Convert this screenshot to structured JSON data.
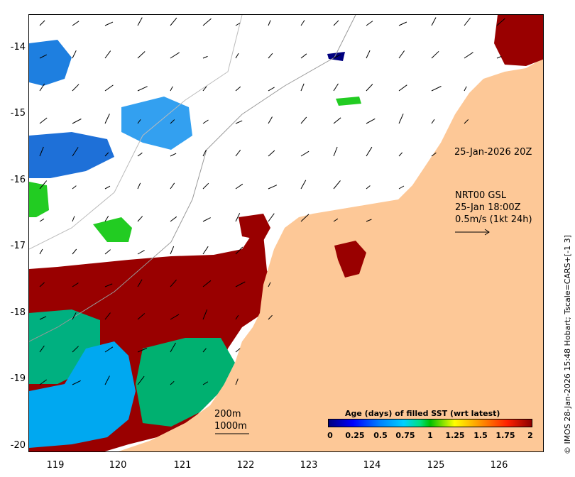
{
  "map": {
    "y_axis_labels": [
      "-14",
      "-15",
      "-16",
      "-17",
      "-18",
      "-19",
      "-20"
    ],
    "x_axis_labels": [
      "119",
      "120",
      "121",
      "122",
      "123",
      "124",
      "125",
      "126"
    ],
    "timestamp_label": "25-Jan-2026 20Z",
    "current_info": {
      "line1": "NRT00 GSL",
      "line2": "25-Jan 18:00Z",
      "line3": "0.5m/s (1kt 24h)"
    },
    "depth_labels": [
      "200m",
      "1000m"
    ],
    "credit": "© IMOS 28-Jan-2026 15:48 Hobart; Tscale=CARS+[-1 3]",
    "colors": {
      "land": "#fdc897",
      "old_sst": "#990000",
      "fresh_sst": "#00a8f0",
      "mid_sst": "#00c070",
      "green_sst": "#22cc22"
    }
  },
  "legend": {
    "title": "Age (days) of filled SST (wrt latest)",
    "ticks": [
      "0",
      "0.25",
      "0.5",
      "0.75",
      "1",
      "1.25",
      "1.5",
      "1.75",
      "2"
    ]
  }
}
